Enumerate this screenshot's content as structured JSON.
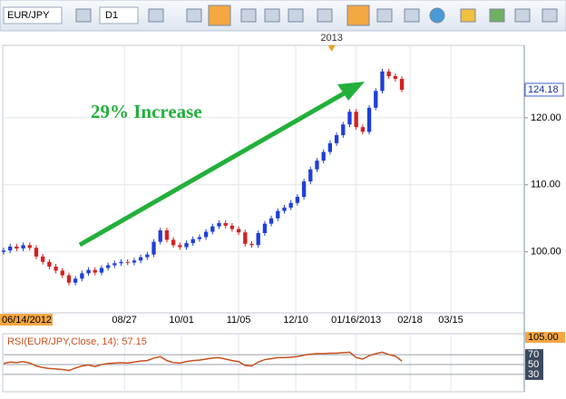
{
  "toolbar": {
    "symbol": "EUR/JPY",
    "timeframe": "D1"
  },
  "chart_data": [
    {
      "type": "candlestick",
      "annotation": "29% Increase",
      "year_marker": {
        "value": 201,
        "label": "2013"
      },
      "x": [
        0,
        4,
        8,
        12,
        16,
        20,
        24,
        28,
        32,
        36,
        40,
        44,
        48,
        52,
        56,
        60,
        64,
        68,
        72,
        76,
        80,
        84,
        88,
        92,
        96,
        100,
        104,
        108,
        112,
        116,
        120,
        124,
        128,
        132,
        136,
        140,
        144,
        148,
        152,
        156,
        160,
        164,
        168,
        172,
        176,
        180,
        184,
        188,
        192,
        196,
        200,
        204,
        208,
        212,
        216,
        220,
        224,
        228,
        232,
        236,
        240,
        244
      ],
      "open": [
        100.0,
        100.2,
        100.8,
        100.5,
        101.0,
        100.6,
        99.3,
        98.5,
        97.8,
        97.2,
        96.5,
        95.4,
        96.0,
        96.8,
        97.3,
        96.9,
        97.6,
        98.0,
        98.3,
        98.5,
        98.4,
        98.7,
        99.2,
        99.6,
        101.5,
        103.2,
        101.8,
        101.0,
        100.7,
        101.3,
        101.9,
        102.2,
        103.0,
        103.8,
        104.3,
        103.9,
        103.4,
        102.9,
        101.2,
        101.0,
        102.8,
        104.2,
        105.0,
        106.1,
        106.6,
        107.3,
        108.2,
        110.5,
        112.3,
        113.6,
        114.9,
        116.2,
        117.4,
        119.0,
        120.9,
        118.6,
        117.9,
        121.5,
        124.0,
        126.9,
        126.2,
        125.8
      ],
      "high": [
        100.6,
        101.2,
        101.2,
        101.4,
        101.4,
        101.0,
        99.7,
        98.9,
        98.2,
        97.6,
        96.9,
        96.4,
        97.2,
        97.7,
        97.7,
        98.0,
        98.4,
        98.7,
        98.9,
        98.9,
        99.1,
        99.6,
        100.0,
        101.9,
        103.6,
        103.6,
        102.2,
        101.4,
        101.7,
        102.3,
        102.6,
        103.4,
        104.2,
        104.7,
        104.7,
        104.3,
        103.8,
        103.3,
        101.6,
        103.2,
        104.6,
        105.4,
        106.5,
        107.0,
        107.7,
        108.6,
        110.9,
        112.7,
        114.0,
        115.3,
        116.6,
        117.8,
        119.4,
        121.3,
        121.3,
        119.0,
        121.9,
        124.4,
        127.3,
        127.3,
        126.6,
        126.2
      ],
      "low": [
        99.6,
        99.8,
        100.1,
        100.1,
        100.2,
        98.9,
        98.1,
        97.4,
        96.8,
        96.1,
        95.0,
        95.0,
        95.6,
        96.4,
        96.5,
        96.5,
        97.2,
        97.6,
        97.9,
        98.0,
        98.0,
        98.3,
        98.8,
        99.2,
        101.1,
        101.4,
        100.6,
        100.3,
        100.3,
        100.9,
        101.5,
        101.8,
        102.6,
        103.4,
        103.5,
        103.0,
        102.5,
        100.8,
        100.6,
        100.6,
        102.4,
        103.8,
        104.6,
        105.7,
        106.2,
        106.9,
        107.8,
        110.1,
        111.9,
        113.2,
        114.5,
        115.8,
        117.0,
        118.6,
        118.2,
        117.5,
        117.5,
        121.1,
        123.6,
        125.8,
        125.4,
        123.8
      ],
      "close": [
        100.2,
        100.8,
        100.5,
        101.0,
        100.6,
        99.3,
        98.5,
        97.8,
        97.2,
        96.5,
        95.4,
        96.0,
        96.8,
        97.3,
        96.9,
        97.6,
        98.0,
        98.3,
        98.5,
        98.4,
        98.7,
        99.2,
        99.6,
        101.5,
        103.2,
        101.8,
        101.0,
        100.7,
        101.3,
        101.9,
        102.2,
        103.0,
        103.8,
        104.3,
        103.9,
        103.4,
        102.9,
        101.2,
        101.0,
        102.8,
        104.2,
        105.0,
        106.1,
        106.6,
        107.3,
        108.2,
        110.5,
        112.3,
        113.6,
        114.9,
        116.2,
        117.4,
        119.0,
        120.9,
        118.6,
        117.9,
        121.5,
        124.0,
        126.9,
        126.2,
        125.8,
        124.18
      ],
      "up_color": "#1f3fd8",
      "down_color": "#d42020",
      "xlim": [
        0,
        319
      ],
      "ylim": [
        90.9,
        130.8
      ],
      "xticks": [
        {
          "value": 0,
          "label": "06/14/2012"
        },
        {
          "value": 74,
          "label": "08/27"
        },
        {
          "value": 109,
          "label": "10/01"
        },
        {
          "value": 144,
          "label": "11/05"
        },
        {
          "value": 179,
          "label": "12/10"
        },
        {
          "value": 216,
          "label": "01/16/2013"
        },
        {
          "value": 249,
          "label": "02/18"
        },
        {
          "value": 274,
          "label": "03/15"
        }
      ],
      "yticks": [
        {
          "value": 100,
          "label": "100.00"
        },
        {
          "value": 110,
          "label": "110.00"
        },
        {
          "value": 120,
          "label": "120.00"
        }
      ],
      "grid": true
    },
    {
      "type": "line",
      "title": "RSI(EUR/JPY,Close, 14): 57.15",
      "color": "#c8501e",
      "values": [
        52,
        55,
        54,
        56,
        53,
        47,
        44,
        42,
        41,
        40,
        38,
        43,
        47,
        49,
        46,
        50,
        52,
        53,
        54,
        53,
        55,
        57,
        58,
        63,
        66,
        58,
        54,
        53,
        56,
        58,
        59,
        61,
        63,
        64,
        61,
        58,
        56,
        48,
        47,
        55,
        60,
        62,
        64,
        64,
        65,
        66,
        69,
        71,
        72,
        72,
        73,
        73,
        74,
        75,
        64,
        61,
        68,
        72,
        75,
        70,
        67,
        57.15
      ],
      "ylim": [
        -5,
        105
      ],
      "yticks": [
        {
          "value": 105,
          "label": "105.00"
        },
        70,
        50,
        30
      ],
      "grid": true
    }
  ]
}
